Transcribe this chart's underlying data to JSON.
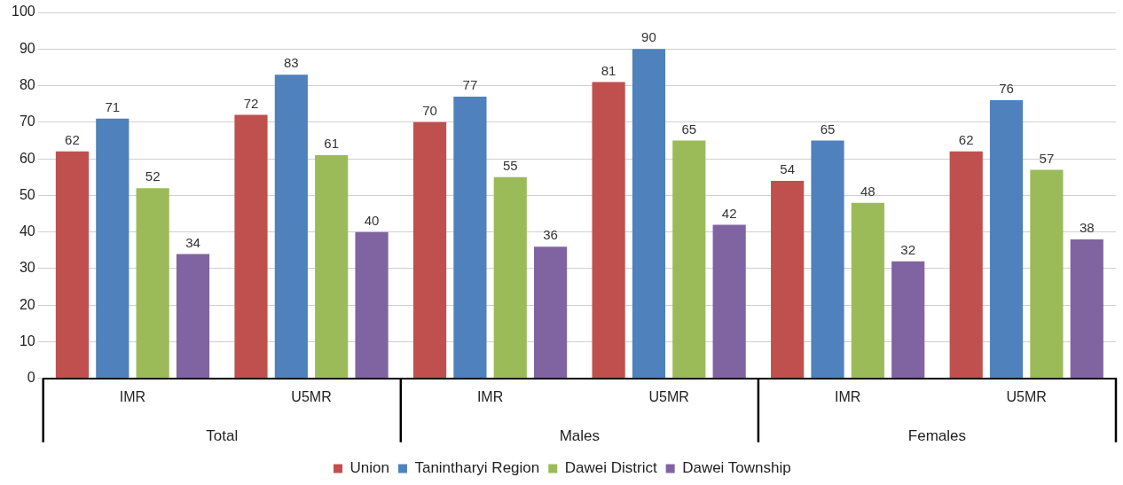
{
  "chart_data": {
    "type": "bar",
    "categories": [
      "IMR",
      "U5MR",
      "IMR",
      "U5MR",
      "IMR",
      "U5MR"
    ],
    "series": [
      {
        "name": "Union",
        "color": "#c0504d",
        "values": [
          62,
          72,
          70,
          81,
          54,
          62
        ]
      },
      {
        "name": "Tanintharyi Region",
        "color": "#4f81bd",
        "values": [
          71,
          83,
          77,
          90,
          65,
          76
        ]
      },
      {
        "name": "Dawei District",
        "color": "#9bbb59",
        "values": [
          52,
          61,
          55,
          65,
          48,
          57
        ]
      },
      {
        "name": "Dawei Township",
        "color": "#8064a2",
        "values": [
          34,
          40,
          36,
          42,
          32,
          38
        ]
      }
    ],
    "annotations": [
      "Total",
      "Males",
      "Females"
    ],
    "ylim": [
      0,
      100
    ],
    "yticks": [
      0,
      10,
      20,
      30,
      40,
      50,
      60,
      70,
      80,
      90,
      100
    ],
    "grid": "y",
    "legend": "bottom",
    "data_labels": true
  }
}
